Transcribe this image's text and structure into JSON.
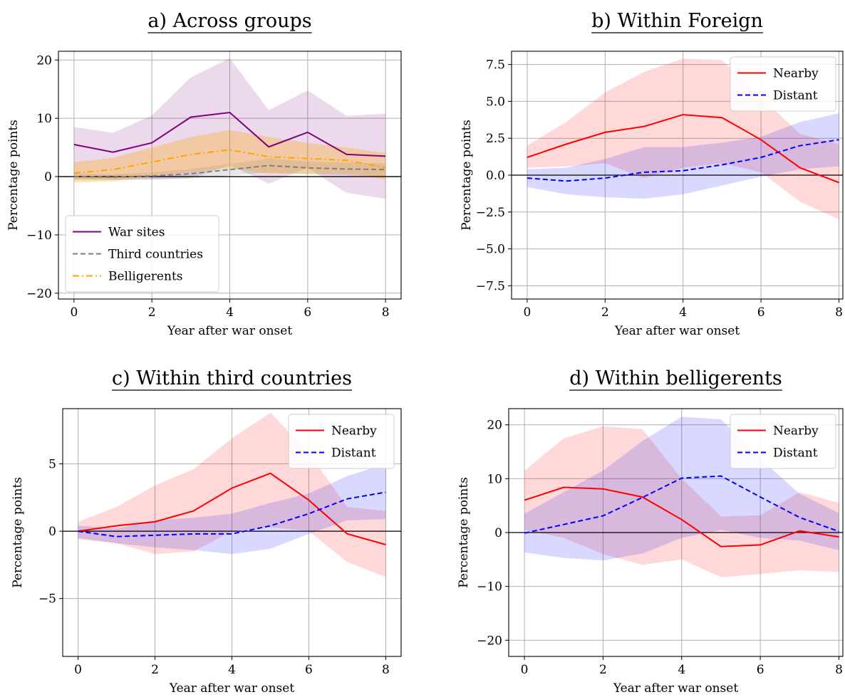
{
  "figure": {
    "background": "#ffffff"
  },
  "chart_data": [
    {
      "type": "line",
      "title": "a) Across groups",
      "xlabel": "Year after war onset",
      "ylabel": "Percentage points",
      "x": [
        0,
        1,
        2,
        3,
        4,
        5,
        6,
        7,
        8
      ],
      "xlim": [
        -0.4,
        8.4
      ],
      "ylim": [
        -21,
        21.5
      ],
      "xticks": [
        0,
        2,
        4,
        6,
        8
      ],
      "yticks": [
        -20,
        -10,
        0,
        10,
        20
      ],
      "xtick_labels": [
        "0",
        "2",
        "4",
        "6",
        "8"
      ],
      "ytick_labels": [
        "−20",
        "−10",
        "0",
        "10",
        "20"
      ],
      "grid": true,
      "zero_line": true,
      "legend_position": "lower-left",
      "series": [
        {
          "name": "War sites",
          "color": "#800080",
          "dash": "solid",
          "values": [
            5.5,
            4.2,
            5.8,
            10.2,
            11.0,
            5.1,
            7.6,
            3.8,
            3.5
          ],
          "ci_low": [
            -0.5,
            -0.5,
            -0.5,
            -0.3,
            2.0,
            -1.2,
            1.5,
            -2.8,
            -3.8
          ],
          "ci_high": [
            8.5,
            7.5,
            10.5,
            17.0,
            20.3,
            11.4,
            14.8,
            10.4,
            10.8
          ],
          "band_color": "#800080",
          "band_opacity": 0.15
        },
        {
          "name": "Third countries",
          "color": "#7f7f7f",
          "dash": "dashed",
          "values": [
            0.0,
            -0.1,
            0.1,
            0.5,
            1.2,
            1.9,
            1.5,
            1.3,
            1.2
          ],
          "ci_low": [
            -0.5,
            -0.6,
            -0.5,
            -0.3,
            0.2,
            0.7,
            0.4,
            0.2,
            0.1
          ],
          "ci_high": [
            0.5,
            0.4,
            0.7,
            1.3,
            2.2,
            3.1,
            2.6,
            2.4,
            2.3
          ],
          "band_color": "#7f7f7f",
          "band_opacity": 0.2
        },
        {
          "name": "Belligerents",
          "color": "#ffa500",
          "dash": "dashdot",
          "values": [
            0.6,
            1.2,
            2.5,
            3.8,
            4.6,
            3.4,
            3.1,
            2.8,
            1.5
          ],
          "ci_low": [
            -1.0,
            -0.8,
            0.0,
            0.8,
            1.5,
            0.5,
            0.5,
            0.5,
            -0.5
          ],
          "ci_high": [
            2.5,
            3.2,
            5.0,
            6.8,
            8.0,
            6.8,
            5.8,
            5.0,
            4.0
          ],
          "band_color": "#ffa500",
          "band_opacity": 0.3
        }
      ]
    },
    {
      "type": "line",
      "title": "b) Within Foreign",
      "xlabel": "Year after war onset",
      "ylabel": "Percentage points",
      "x": [
        0,
        1,
        2,
        3,
        4,
        5,
        6,
        7,
        8
      ],
      "xlim": [
        -0.4,
        8.1
      ],
      "ylim": [
        -8.4,
        8.4
      ],
      "xticks": [
        0,
        2,
        4,
        6,
        8
      ],
      "yticks": [
        -7.5,
        -5.0,
        -2.5,
        0.0,
        2.5,
        5.0,
        7.5
      ],
      "xtick_labels": [
        "0",
        "2",
        "4",
        "6",
        "8"
      ],
      "ytick_labels": [
        "−7.5",
        "−5.0",
        "−2.5",
        "0.0",
        "2.5",
        "5.0",
        "7.5"
      ],
      "grid": true,
      "zero_line": true,
      "legend_position": "upper-right",
      "series": [
        {
          "name": "Nearby",
          "color": "#ff0000",
          "dash": "solid",
          "values": [
            1.2,
            2.1,
            2.9,
            3.3,
            4.1,
            3.9,
            2.4,
            0.5,
            -0.5
          ],
          "ci_low": [
            0.5,
            0.6,
            0.8,
            -0.2,
            0.5,
            0.8,
            0.2,
            -1.8,
            -3.0
          ],
          "ci_high": [
            2.0,
            3.6,
            5.6,
            7.0,
            7.9,
            7.8,
            5.3,
            2.8,
            2.1
          ],
          "band_color": "#ff0000",
          "band_opacity": 0.15
        },
        {
          "name": "Distant",
          "color": "#0000ff",
          "dash": "dashed",
          "values": [
            -0.2,
            -0.4,
            -0.2,
            0.2,
            0.3,
            0.7,
            1.2,
            2.0,
            2.4
          ],
          "ci_low": [
            -0.8,
            -1.3,
            -1.5,
            -1.6,
            -1.3,
            -0.7,
            -0.1,
            0.4,
            0.6
          ],
          "ci_high": [
            0.4,
            0.5,
            1.1,
            1.9,
            1.9,
            2.2,
            2.6,
            3.6,
            4.2
          ],
          "band_color": "#0000ff",
          "band_opacity": 0.15
        }
      ]
    },
    {
      "type": "line",
      "title": "c) Within third countries",
      "xlabel": "Year after war onset",
      "ylabel": "Percentage points",
      "x": [
        0,
        1,
        2,
        3,
        4,
        5,
        6,
        7,
        8
      ],
      "xlim": [
        -0.4,
        8.4
      ],
      "ylim": [
        -9.3,
        9.1
      ],
      "xticks": [
        0,
        2,
        4,
        6,
        8
      ],
      "yticks": [
        -5,
        0,
        5
      ],
      "xtick_labels": [
        "0",
        "2",
        "4",
        "6",
        "8"
      ],
      "ytick_labels": [
        "−5",
        "0",
        "5"
      ],
      "grid": true,
      "zero_line": true,
      "legend_position": "upper-right",
      "series": [
        {
          "name": "Nearby",
          "color": "#ff0000",
          "dash": "solid",
          "values": [
            0.0,
            0.4,
            0.7,
            1.5,
            3.2,
            4.3,
            2.3,
            -0.2,
            -1.0
          ],
          "ci_low": [
            -0.6,
            -0.9,
            -1.7,
            -1.5,
            0.0,
            0.3,
            0.0,
            -2.3,
            -3.4
          ],
          "ci_high": [
            0.7,
            1.8,
            3.4,
            4.6,
            6.9,
            8.8,
            5.8,
            1.8,
            1.5
          ],
          "band_color": "#ff0000",
          "band_opacity": 0.15
        },
        {
          "name": "Distant",
          "color": "#0000ff",
          "dash": "dashed",
          "values": [
            0.0,
            -0.4,
            -0.3,
            -0.2,
            -0.2,
            0.4,
            1.3,
            2.4,
            2.9
          ],
          "ci_low": [
            -0.5,
            -0.9,
            -1.2,
            -1.4,
            -1.7,
            -1.3,
            -0.2,
            0.8,
            0.9
          ],
          "ci_high": [
            0.4,
            0.2,
            0.8,
            1.0,
            1.3,
            2.1,
            2.8,
            4.1,
            5.0
          ],
          "band_color": "#0000ff",
          "band_opacity": 0.15
        }
      ]
    },
    {
      "type": "line",
      "title": "d) Within belligerents",
      "xlabel": "Year after war onset",
      "ylabel": "Percentage points",
      "x": [
        0,
        1,
        2,
        3,
        4,
        5,
        6,
        7,
        8
      ],
      "xlim": [
        -0.4,
        8.1
      ],
      "ylim": [
        -23,
        23
      ],
      "xticks": [
        0,
        2,
        4,
        6,
        8
      ],
      "yticks": [
        -20,
        -10,
        0,
        10,
        20
      ],
      "xtick_labels": [
        "0",
        "2",
        "4",
        "6",
        "8"
      ],
      "ytick_labels": [
        "−20",
        "−10",
        "0",
        "10",
        "20"
      ],
      "grid": true,
      "zero_line": true,
      "legend_position": "upper-right",
      "series": [
        {
          "name": "Nearby",
          "color": "#ff0000",
          "dash": "solid",
          "values": [
            6.0,
            8.4,
            8.1,
            6.6,
            2.4,
            -2.6,
            -2.3,
            0.3,
            -0.8
          ],
          "ci_low": [
            0.5,
            -1.0,
            -4.0,
            -6.0,
            -5.0,
            -8.3,
            -7.7,
            -7.0,
            -7.3
          ],
          "ci_high": [
            11.5,
            17.5,
            19.7,
            19.2,
            10.0,
            3.0,
            3.2,
            7.5,
            5.5
          ],
          "band_color": "#ff0000",
          "band_opacity": 0.15
        },
        {
          "name": "Distant",
          "color": "#0000ff",
          "dash": "dashed",
          "values": [
            -0.1,
            1.5,
            3.1,
            6.5,
            10.1,
            10.5,
            6.6,
            2.8,
            0.2
          ],
          "ci_low": [
            -3.7,
            -4.7,
            -5.2,
            -3.9,
            -1.0,
            0.5,
            -1.0,
            -1.5,
            -3.3
          ],
          "ci_high": [
            3.5,
            7.5,
            11.5,
            17.0,
            21.5,
            21.0,
            13.7,
            7.2,
            3.6
          ],
          "band_color": "#0000ff",
          "band_opacity": 0.15
        }
      ]
    }
  ]
}
